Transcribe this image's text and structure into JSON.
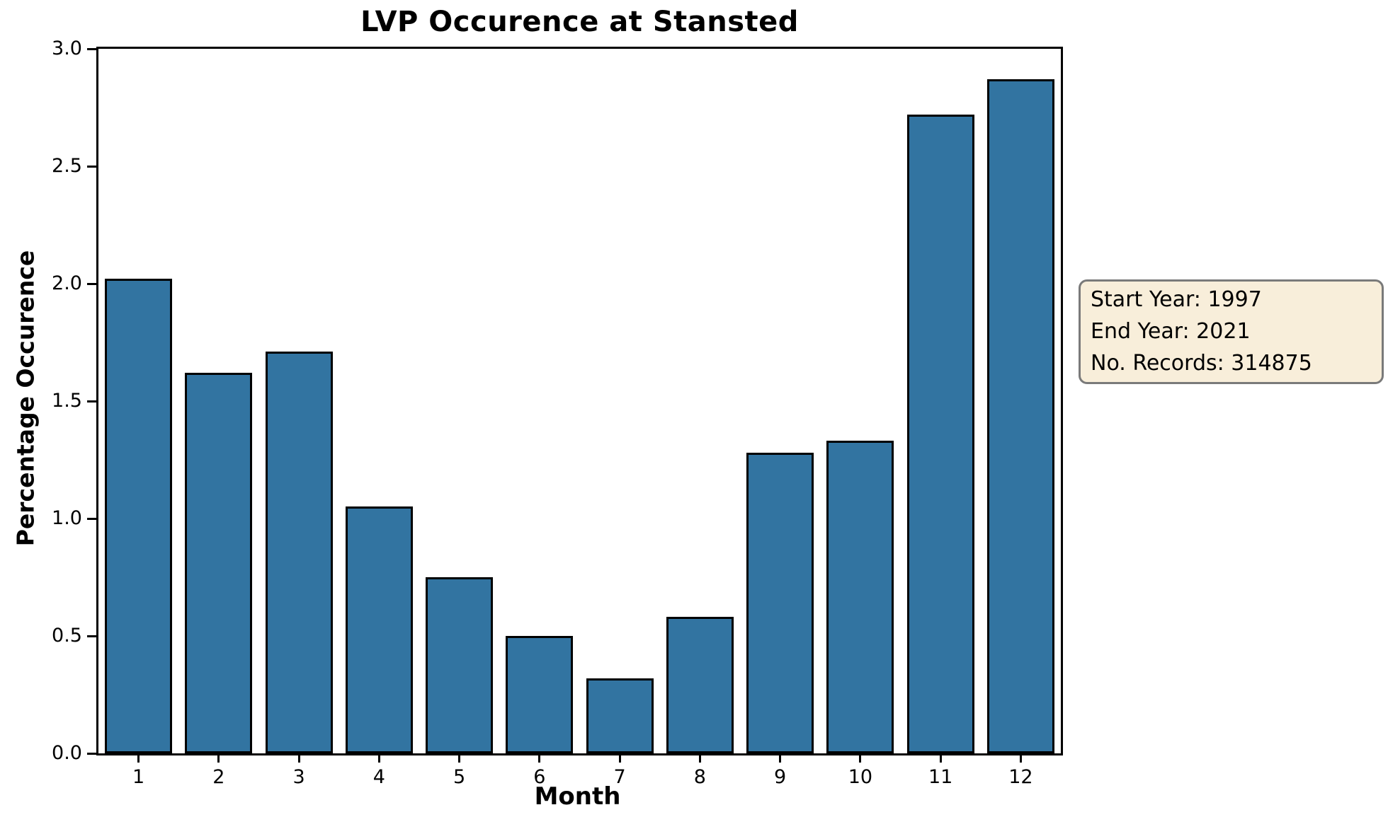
{
  "chart_data": {
    "type": "bar",
    "title": "LVP Occurence at Stansted",
    "xlabel": "Month",
    "ylabel": "Percentage Occurence",
    "categories": [
      "1",
      "2",
      "3",
      "4",
      "5",
      "6",
      "7",
      "8",
      "9",
      "10",
      "11",
      "12"
    ],
    "values": [
      2.02,
      1.62,
      1.71,
      1.05,
      0.75,
      0.5,
      0.32,
      0.58,
      1.28,
      1.33,
      2.72,
      2.87
    ],
    "ylim": [
      0.0,
      3.0
    ],
    "yticks": [
      0.0,
      0.5,
      1.0,
      1.5,
      2.0,
      2.5,
      3.0
    ],
    "ytick_labels": [
      "0.0",
      "0.5",
      "1.0",
      "1.5",
      "2.0",
      "2.5",
      "3.0"
    ],
    "grid": false,
    "legend": "none",
    "bar_color": "#3274a1",
    "bar_edge_color": "#000000"
  },
  "annotation": {
    "lines": [
      "Start Year: 1997",
      "End Year: 2021",
      "No. Records: 314875"
    ],
    "background_color": "#f8eeda",
    "border_color": "#7a7a7a"
  }
}
